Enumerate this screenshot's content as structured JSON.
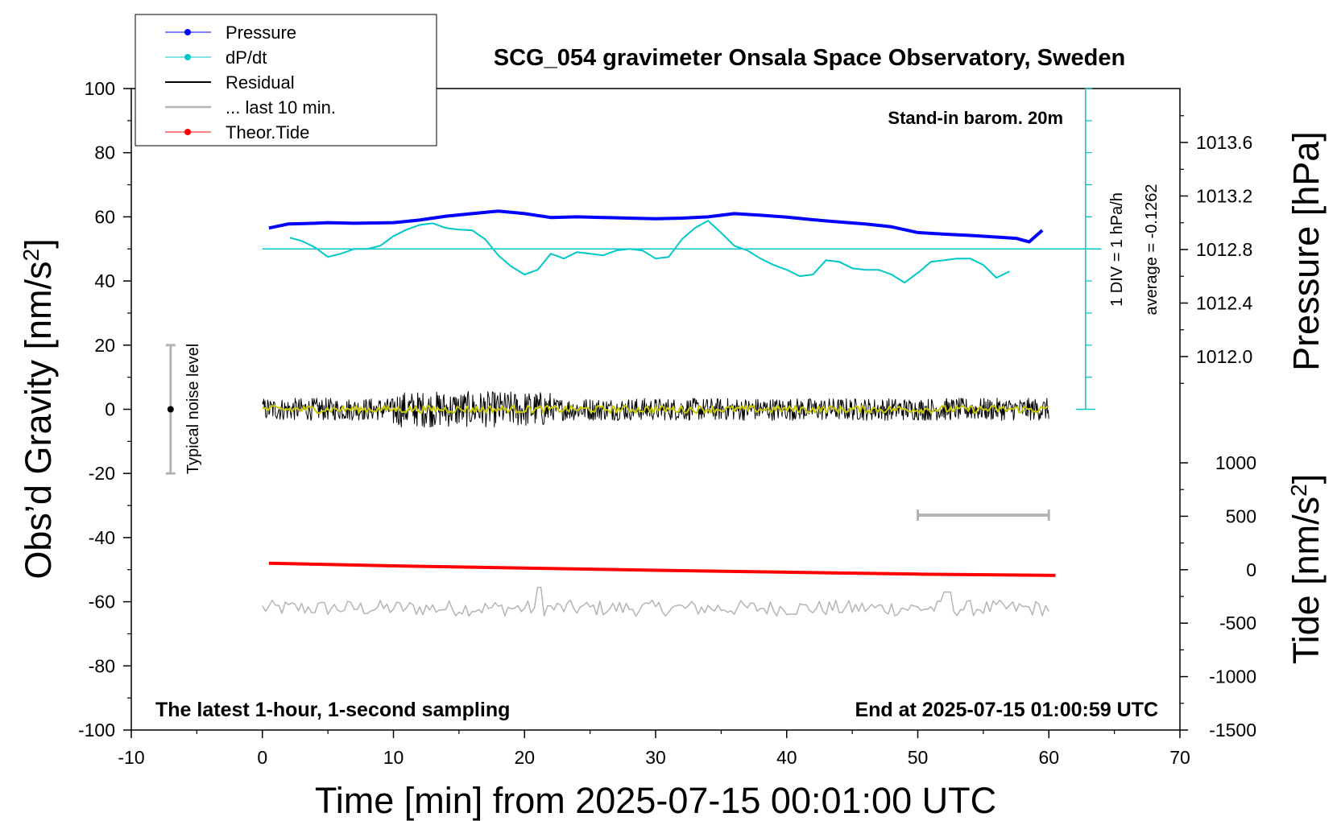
{
  "chart_data": {
    "type": "line",
    "title": "SCG_054 gravimeter Onsala Space Observatory, Sweden",
    "xlabel": "Time [min] from 2025-07-15 00:01:00 UTC",
    "ylabel_left_main": "Obs’d Gravity [nm/s",
    "ylabel_left_sup": "2",
    "ylabel_left_end": "]",
    "ylabel_right_pressure": "Pressure [hPa]",
    "ylabel_right_tide_main": "Tide [nm/s",
    "ylabel_right_tide_sup": "2",
    "ylabel_right_tide_end": "]",
    "xlim": [
      -10,
      70
    ],
    "ylim": [
      -100,
      100
    ],
    "x_ticks": [
      "-10",
      "0",
      "10",
      "20",
      "30",
      "40",
      "50",
      "60",
      "70"
    ],
    "y_ticks": [
      "-100",
      "-80",
      "-60",
      "-40",
      "-20",
      "0",
      "20",
      "40",
      "60",
      "80",
      "100"
    ],
    "pressure_ticks": [
      "1012.0",
      "1012.4",
      "1012.8",
      "1013.2",
      "1013.6"
    ],
    "tide_ticks": [
      "-1500",
      "-1000",
      "-500",
      "0",
      "500",
      "1000"
    ],
    "legend": {
      "placement": "top-left",
      "entries": [
        {
          "label": "Pressure",
          "color": "#0000ff",
          "marker": true
        },
        {
          "label": "dP/dt",
          "color": "#00c8c8",
          "marker": true
        },
        {
          "label": "Residual",
          "color": "#000000",
          "marker": false
        },
        {
          "label": "... last 10 min.",
          "color": "#b4b4b4",
          "marker": false
        },
        {
          "label": "Theor.Tide",
          "color": "#ff0000",
          "marker": true
        }
      ]
    },
    "annotations": {
      "barometer": "Stand-in barom. 20m",
      "div_label": "1 DIV = 1 hPa/h",
      "average": "average = -0.1262",
      "noise": "Typical noise level",
      "latest": "The latest 1-hour, 1-second sampling",
      "end": "End at 2025-07-15 01:00:59 UTC"
    },
    "noise_bar": {
      "x": -7,
      "y_center": 0,
      "half_range": 20
    },
    "last10_bar": {
      "x_start": 50,
      "x_end": 60,
      "y": -33
    },
    "series": [
      {
        "name": "Pressure",
        "color": "#0000ff",
        "x": [
          0.5,
          2,
          4,
          5,
          7,
          10,
          12,
          14,
          16,
          18,
          20,
          22,
          24,
          26,
          28,
          30,
          32,
          34,
          36,
          38,
          40,
          42,
          44,
          46,
          48,
          50,
          52,
          54,
          56,
          57.5,
          58.5,
          59.5
        ],
        "y": [
          56.5,
          57.8,
          58.0,
          58.2,
          58.0,
          58.2,
          59.0,
          60.2,
          61.0,
          61.8,
          61.0,
          59.8,
          60.0,
          59.8,
          59.6,
          59.4,
          59.6,
          60.0,
          61.0,
          60.5,
          59.9,
          59.1,
          58.4,
          57.8,
          56.9,
          55.1,
          54.6,
          54.2,
          53.7,
          53.3,
          52.2,
          55.8
        ]
      },
      {
        "name": "dP/dt",
        "color": "#00c8c8",
        "x": [
          2.1,
          3,
          4,
          5,
          6,
          7,
          8,
          9,
          10,
          11,
          12,
          13,
          14,
          15,
          16,
          17,
          18,
          19,
          20,
          21,
          22,
          23,
          24,
          25,
          26,
          27,
          28,
          29,
          30,
          31,
          32,
          33,
          34,
          35,
          36,
          37,
          38,
          39,
          40,
          41,
          42,
          43,
          44,
          45,
          46,
          47,
          48,
          49,
          50,
          51,
          52,
          53,
          54,
          55,
          56,
          57
        ],
        "y": [
          53.5,
          52.5,
          50.5,
          47.5,
          48.5,
          50,
          50,
          51,
          54,
          56,
          57.5,
          58,
          56.5,
          56,
          55.8,
          53,
          48,
          44.5,
          42,
          43.5,
          48.5,
          47,
          49,
          48.5,
          48,
          49.5,
          50,
          49.5,
          47,
          47.5,
          53,
          56.5,
          58.8,
          55,
          51,
          49.5,
          47,
          45,
          43.5,
          41.5,
          42,
          46.5,
          46,
          44,
          43.5,
          43.5,
          42,
          39.5,
          42.5,
          46,
          46.5,
          47,
          47,
          45,
          41,
          43
        ]
      },
      {
        "name": "Residual",
        "color": "#000000",
        "x_range": [
          0,
          60
        ],
        "amplitude": 3.5
      },
      {
        "name": "Residual smoothed",
        "color": "#c8c800",
        "x_range": [
          0,
          60
        ],
        "amplitude": 1.2
      },
      {
        "name": "Theor.Tide",
        "color": "#ff0000",
        "x": [
          0.5,
          10,
          20,
          30,
          40,
          50,
          60.5
        ],
        "y": [
          -48.0,
          -48.8,
          -49.5,
          -50.2,
          -50.8,
          -51.4,
          -51.8
        ]
      },
      {
        "name": "Last 10 min. detail",
        "color": "#b4b4b4",
        "x_range": [
          0,
          60
        ],
        "y_center": -62,
        "amplitude": 2.5
      }
    ]
  }
}
